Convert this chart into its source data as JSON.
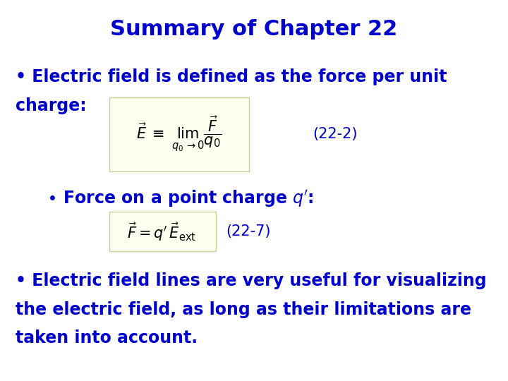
{
  "title": "Summary of Chapter 22",
  "title_color": "#0000CC",
  "title_fontsize": 22,
  "body_color": "#0000CC",
  "body_fontsize": 17,
  "equation_box_color": "#FFFFF0",
  "equation_box_edge": "#CCCC99",
  "background_color": "#FFFFFF",
  "bullet1_line1": "• Electric field is defined as the force per unit",
  "bullet1_line2": "charge:",
  "eq1_label": "(22-2)",
  "bullet2": "  • Force on a point charge q′:",
  "eq2_label": "(22-7)",
  "bullet3_line1": "• Electric field lines are very useful for visualizing",
  "bullet3_line2": "the electric field, as long as their limitations are",
  "bullet3_line3": "taken into account."
}
